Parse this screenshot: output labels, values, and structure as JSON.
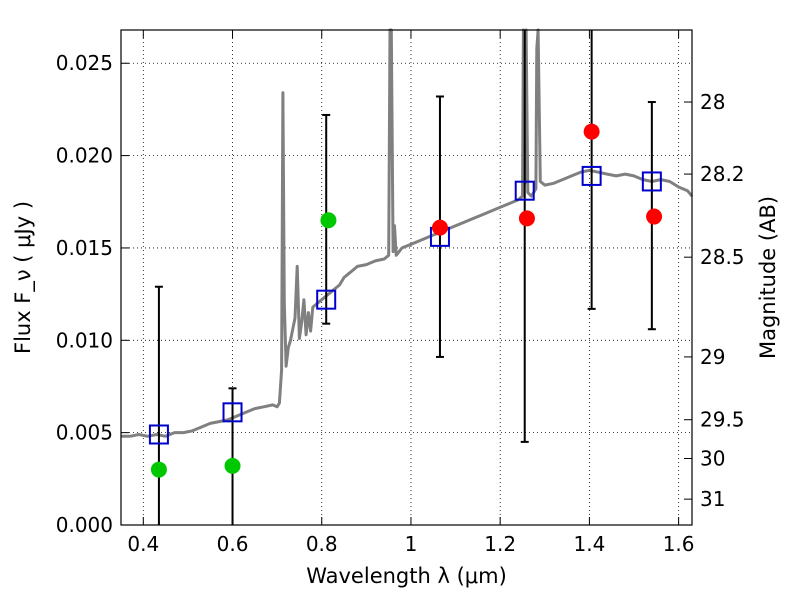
{
  "chart_data": {
    "type": "scatter",
    "xlabel": "Wavelength  λ (μm)",
    "ylabel": "Flux  F_ν  ( μJy )",
    "y2label": "Magnitude (AB)",
    "xlim": [
      0.35,
      1.63
    ],
    "ylim": [
      0.0,
      0.0268
    ],
    "grid": true,
    "x_ticks": [
      {
        "value": 0.4,
        "label": "0.4"
      },
      {
        "value": 0.6,
        "label": "0.6"
      },
      {
        "value": 0.8,
        "label": "0.8"
      },
      {
        "value": 1.0,
        "label": "1"
      },
      {
        "value": 1.2,
        "label": "1.2"
      },
      {
        "value": 1.4,
        "label": "1.4"
      },
      {
        "value": 1.6,
        "label": "1.6"
      }
    ],
    "y_ticks": [
      {
        "value": 0.0,
        "label": "0.000"
      },
      {
        "value": 0.005,
        "label": "0.005"
      },
      {
        "value": 0.01,
        "label": "0.010"
      },
      {
        "value": 0.015,
        "label": "0.015"
      },
      {
        "value": 0.02,
        "label": "0.020"
      },
      {
        "value": 0.025,
        "label": "0.025"
      }
    ],
    "y2_ticks": [
      {
        "flux": 0.0229,
        "label": "28"
      },
      {
        "flux": 0.019,
        "label": "28.2"
      },
      {
        "flux": 0.0145,
        "label": "28.5"
      },
      {
        "flux": 0.0091,
        "label": "29"
      },
      {
        "flux": 0.0057,
        "label": "29.5"
      },
      {
        "flux": 0.0036,
        "label": "30"
      },
      {
        "flux": 0.0014,
        "label": "31"
      }
    ],
    "model_spectrum": {
      "color": "#808080",
      "x": [
        0.35,
        0.37,
        0.39,
        0.41,
        0.43,
        0.45,
        0.47,
        0.49,
        0.51,
        0.53,
        0.55,
        0.57,
        0.59,
        0.61,
        0.63,
        0.65,
        0.67,
        0.69,
        0.7,
        0.705,
        0.71,
        0.713,
        0.716,
        0.72,
        0.725,
        0.73,
        0.74,
        0.745,
        0.75,
        0.755,
        0.76,
        0.765,
        0.77,
        0.775,
        0.78,
        0.79,
        0.8,
        0.81,
        0.82,
        0.83,
        0.84,
        0.85,
        0.86,
        0.87,
        0.88,
        0.9,
        0.92,
        0.94,
        0.95,
        0.953,
        0.956,
        0.96,
        0.963,
        0.967,
        0.98,
        1.0,
        1.02,
        1.04,
        1.06,
        1.08,
        1.1,
        1.12,
        1.14,
        1.16,
        1.18,
        1.2,
        1.22,
        1.24,
        1.25,
        1.252,
        1.255,
        1.258,
        1.262,
        1.27,
        1.28,
        1.282,
        1.285,
        1.29,
        1.3,
        1.32,
        1.34,
        1.36,
        1.38,
        1.4,
        1.42,
        1.44,
        1.46,
        1.48,
        1.5,
        1.52,
        1.54,
        1.56,
        1.58,
        1.6,
        1.62,
        1.63
      ],
      "y": [
        0.0048,
        0.0048,
        0.0049,
        0.0048,
        0.0049,
        0.0048,
        0.005,
        0.005,
        0.0051,
        0.0053,
        0.0055,
        0.0056,
        0.0057,
        0.0059,
        0.0061,
        0.0063,
        0.0064,
        0.0065,
        0.0064,
        0.0066,
        0.0084,
        0.0234,
        0.012,
        0.0086,
        0.0096,
        0.01,
        0.0112,
        0.014,
        0.0101,
        0.011,
        0.0122,
        0.0103,
        0.0115,
        0.0105,
        0.0118,
        0.012,
        0.0122,
        0.0124,
        0.0126,
        0.0128,
        0.013,
        0.0134,
        0.0136,
        0.0138,
        0.014,
        0.0141,
        0.0143,
        0.0144,
        0.0146,
        0.0268,
        0.0268,
        0.0148,
        0.0162,
        0.0146,
        0.015,
        0.0152,
        0.0154,
        0.0156,
        0.0158,
        0.016,
        0.0162,
        0.0164,
        0.0166,
        0.0168,
        0.017,
        0.0172,
        0.0174,
        0.0176,
        0.0178,
        0.0268,
        0.0185,
        0.0268,
        0.018,
        0.0178,
        0.0182,
        0.0258,
        0.0268,
        0.0186,
        0.0184,
        0.0185,
        0.0187,
        0.0189,
        0.0191,
        0.0192,
        0.0191,
        0.019,
        0.0189,
        0.019,
        0.0189,
        0.0187,
        0.0186,
        0.0187,
        0.0186,
        0.0183,
        0.0181,
        0.0178
      ]
    },
    "series": [
      {
        "marker": "square",
        "color": "#0000CC",
        "x": [
          0.435,
          0.6,
          0.81,
          1.065,
          1.255,
          1.405,
          1.54
        ],
        "y": [
          0.0049,
          0.0061,
          0.0122,
          0.0156,
          0.0181,
          0.0189,
          0.0186
        ],
        "err_low": [
          0.0,
          0.0,
          0.0109,
          0.0091,
          0.0045,
          0.0117,
          0.0106
        ],
        "err_high": [
          0.0129,
          0.0074,
          0.0222,
          0.0232,
          0.0268,
          0.0268,
          0.0229
        ]
      },
      {
        "marker": "circle",
        "color": "#00C800",
        "x": [
          0.435,
          0.6,
          0.815
        ],
        "y": [
          0.003,
          0.0032,
          0.0165
        ]
      },
      {
        "marker": "circle",
        "color": "#FF0000",
        "x": [
          1.065,
          1.26,
          1.405,
          1.545
        ],
        "y": [
          0.0161,
          0.0166,
          0.0213,
          0.0167
        ]
      }
    ]
  }
}
